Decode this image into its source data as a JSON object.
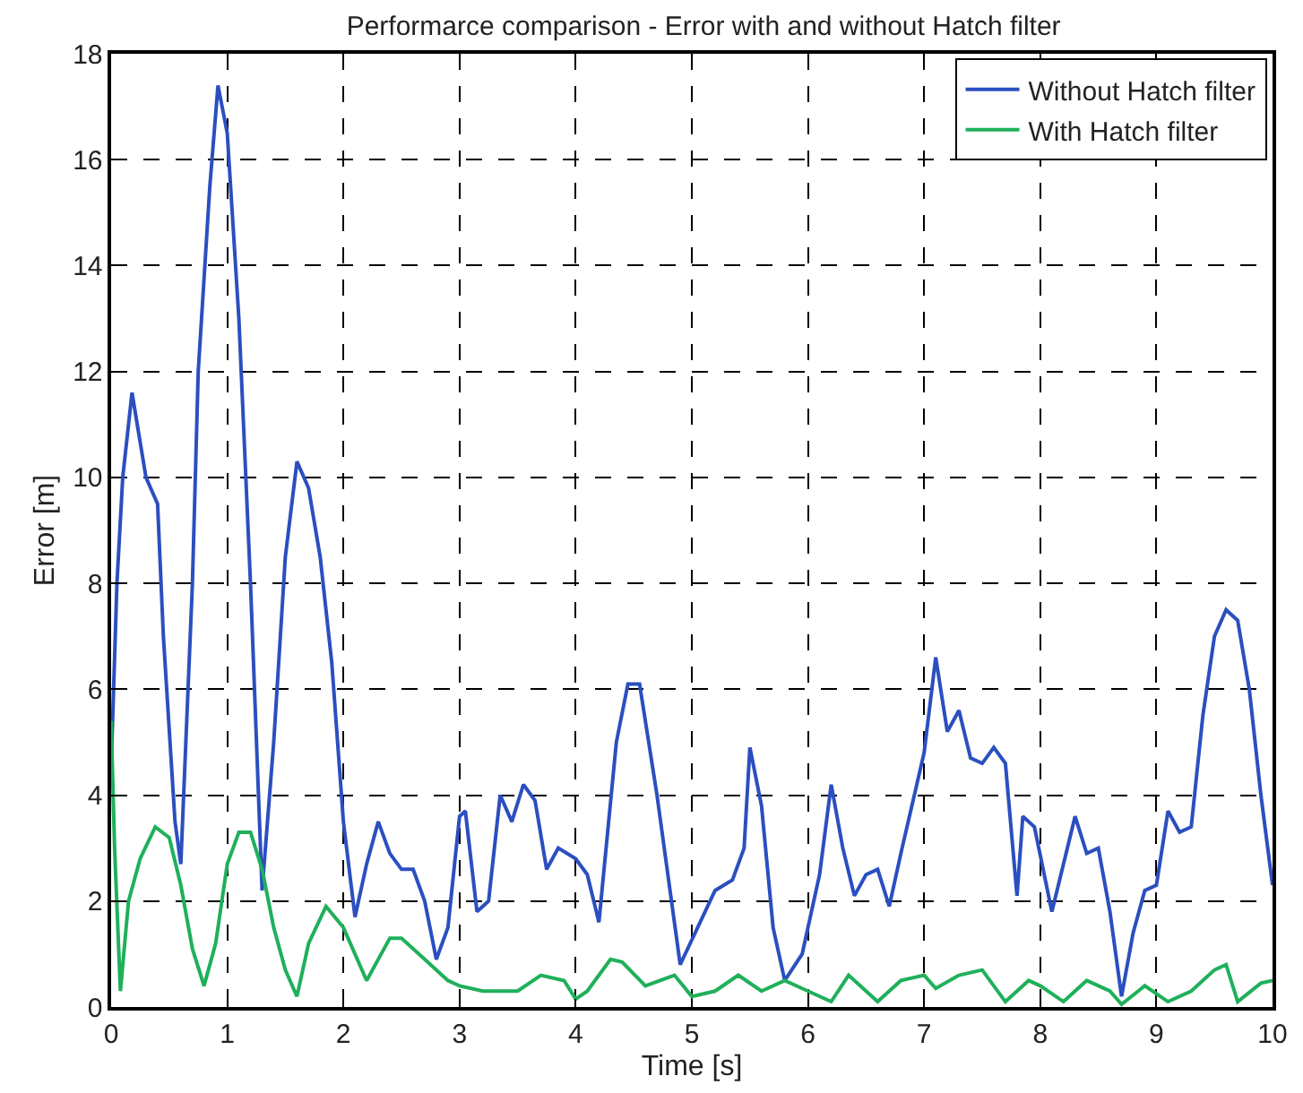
{
  "chart_data": {
    "type": "line",
    "title": "Performarce comparison - Error with and without Hatch filter",
    "xlabel": "Time [s]",
    "ylabel": "Error [m]",
    "xlim": [
      0,
      10
    ],
    "ylim": [
      0,
      18
    ],
    "xticks": [
      0,
      1,
      2,
      3,
      4,
      5,
      6,
      7,
      8,
      9,
      10
    ],
    "yticks": [
      0,
      2,
      4,
      6,
      8,
      10,
      12,
      14,
      16,
      18
    ],
    "grid": true,
    "legend": "top right",
    "line_style": "solid",
    "series": [
      {
        "name": "Without Hatch filter",
        "color": "#2b4fc0",
        "x": [
          0,
          0.05,
          0.1,
          0.18,
          0.3,
          0.4,
          0.45,
          0.55,
          0.6,
          0.7,
          0.75,
          0.85,
          0.92,
          1.0,
          1.1,
          1.2,
          1.3,
          1.4,
          1.5,
          1.6,
          1.7,
          1.8,
          1.9,
          2.0,
          2.1,
          2.2,
          2.3,
          2.4,
          2.5,
          2.6,
          2.7,
          2.8,
          2.9,
          3.0,
          3.05,
          3.15,
          3.25,
          3.35,
          3.45,
          3.55,
          3.65,
          3.75,
          3.85,
          4.0,
          4.1,
          4.2,
          4.35,
          4.45,
          4.55,
          4.7,
          4.9,
          5.05,
          5.2,
          5.35,
          5.45,
          5.5,
          5.6,
          5.7,
          5.8,
          5.95,
          6.1,
          6.2,
          6.3,
          6.4,
          6.5,
          6.6,
          6.7,
          6.8,
          7.0,
          7.1,
          7.2,
          7.3,
          7.4,
          7.5,
          7.6,
          7.7,
          7.8,
          7.85,
          7.95,
          8.1,
          8.3,
          8.4,
          8.5,
          8.6,
          8.7,
          8.8,
          8.9,
          9.0,
          9.1,
          9.2,
          9.3,
          9.4,
          9.5,
          9.6,
          9.7,
          9.8,
          9.9,
          10
        ],
        "values": [
          4.5,
          8,
          10,
          11.6,
          10,
          9.5,
          7,
          3.5,
          2.7,
          8,
          12,
          15.5,
          17.4,
          16.5,
          13,
          8,
          2.2,
          5,
          8.5,
          10.3,
          9.8,
          8.5,
          6.5,
          3.5,
          1.7,
          2.7,
          3.5,
          2.9,
          2.6,
          2.6,
          2.0,
          0.9,
          1.5,
          3.6,
          3.7,
          1.8,
          2.0,
          4.0,
          3.5,
          4.2,
          3.9,
          2.6,
          3.0,
          2.8,
          2.5,
          1.6,
          5.0,
          6.1,
          6.1,
          4.0,
          0.8,
          1.5,
          2.2,
          2.4,
          3.0,
          4.9,
          3.8,
          1.5,
          0.5,
          1.0,
          2.5,
          4.2,
          3.0,
          2.1,
          2.5,
          2.6,
          1.9,
          2.9,
          4.8,
          6.6,
          5.2,
          5.6,
          4.7,
          4.6,
          4.9,
          4.6,
          2.1,
          3.6,
          3.4,
          1.8,
          3.6,
          2.9,
          3.0,
          1.8,
          0.2,
          1.4,
          2.2,
          2.3,
          3.7,
          3.3,
          3.4,
          5.5,
          7.0,
          7.5,
          7.3,
          6.0,
          4.0,
          2.3
        ]
      },
      {
        "name": "With Hatch filter",
        "color": "#1fb05a",
        "x": [
          0,
          0.03,
          0.08,
          0.15,
          0.25,
          0.38,
          0.5,
          0.6,
          0.7,
          0.8,
          0.9,
          1.0,
          1.1,
          1.2,
          1.3,
          1.4,
          1.5,
          1.6,
          1.7,
          1.85,
          2.0,
          2.2,
          2.4,
          2.5,
          2.7,
          2.9,
          3.0,
          3.2,
          3.5,
          3.7,
          3.9,
          4.0,
          4.1,
          4.3,
          4.4,
          4.6,
          4.85,
          5.0,
          5.2,
          5.4,
          5.6,
          5.8,
          6.0,
          6.2,
          6.35,
          6.6,
          6.8,
          7.0,
          7.1,
          7.3,
          7.5,
          7.7,
          7.9,
          8.0,
          8.2,
          8.4,
          8.6,
          8.7,
          8.9,
          9.1,
          9.3,
          9.5,
          9.6,
          9.7,
          9.9,
          10
        ],
        "values": [
          5.4,
          3,
          0.3,
          2.0,
          2.8,
          3.4,
          3.2,
          2.3,
          1.1,
          0.4,
          1.2,
          2.7,
          3.3,
          3.3,
          2.6,
          1.5,
          0.7,
          0.2,
          1.2,
          1.9,
          1.5,
          0.5,
          1.3,
          1.3,
          0.9,
          0.5,
          0.4,
          0.3,
          0.3,
          0.6,
          0.5,
          0.15,
          0.3,
          0.9,
          0.85,
          0.4,
          0.6,
          0.2,
          0.3,
          0.6,
          0.3,
          0.5,
          0.3,
          0.1,
          0.6,
          0.1,
          0.5,
          0.6,
          0.35,
          0.6,
          0.7,
          0.1,
          0.5,
          0.4,
          0.1,
          0.5,
          0.3,
          0.05,
          0.4,
          0.1,
          0.3,
          0.7,
          0.8,
          0.1,
          0.45,
          0.5
        ]
      }
    ]
  }
}
